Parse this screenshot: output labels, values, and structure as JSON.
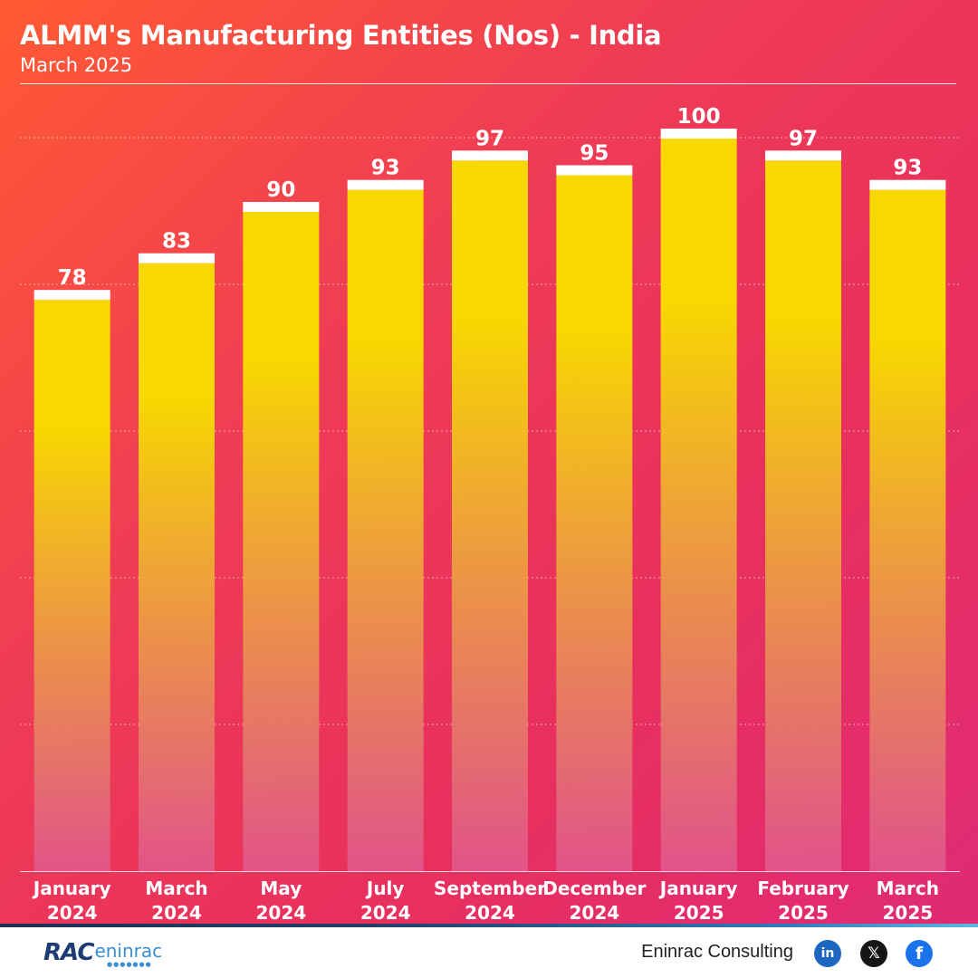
{
  "title": "ALMM's Manufacturing Entities (Nos) - India",
  "subtitle": "March 2025",
  "chart_data": {
    "type": "bar",
    "title": "ALMM's Manufacturing Entities (Nos) - India",
    "subtitle": "March 2025",
    "xlabel": "",
    "ylabel": "",
    "categories": [
      [
        "January",
        "2024"
      ],
      [
        "March",
        "2024"
      ],
      [
        "May",
        "2024"
      ],
      [
        "July",
        "2024"
      ],
      [
        "September",
        "2024"
      ],
      [
        "December",
        "2024"
      ],
      [
        "January",
        "2025"
      ],
      [
        "February",
        "2025"
      ],
      [
        "March",
        "2025"
      ]
    ],
    "values": [
      78,
      83,
      90,
      93,
      97,
      95,
      100,
      97,
      93
    ],
    "ylim": [
      0,
      100
    ],
    "grid": true,
    "data_labels": true,
    "colors": {
      "bar_top": "#f7d800",
      "bar_bottom": "#e05a90",
      "cap": "#ffffff",
      "label": "#ffffff"
    }
  },
  "footer": {
    "logo": {
      "mark": "RAC",
      "word": "eninrac"
    },
    "company": "Eninrac Consulting",
    "social": [
      {
        "name": "linkedin-icon",
        "glyph": "in",
        "color": "#1d67c0"
      },
      {
        "name": "x-icon",
        "glyph": "𝕏",
        "color": "#161616"
      },
      {
        "name": "facebook-icon",
        "glyph": "f",
        "color": "#1a73ea"
      }
    ]
  }
}
